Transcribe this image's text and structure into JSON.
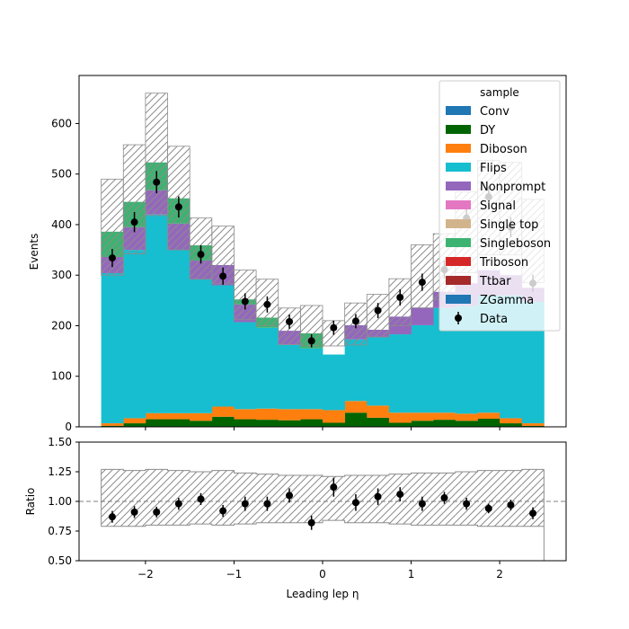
{
  "chart_data": [
    {
      "type": "stacked-histogram",
      "panel": "main",
      "xlabel": "",
      "ylabel": "Events",
      "xlim": [
        -2.75,
        2.75
      ],
      "ylim": [
        0,
        695
      ],
      "bin_edges": [
        -2.5,
        -2.25,
        -2.0,
        -1.75,
        -1.5,
        -1.25,
        -1.0,
        -0.75,
        -0.5,
        -0.25,
        0.0,
        0.25,
        0.5,
        0.75,
        1.0,
        1.25,
        1.5,
        1.75,
        2.0,
        2.25,
        2.5
      ],
      "x_ticks": [
        -2,
        -1,
        0,
        1,
        2
      ],
      "x_tick_labels": [
        "−2",
        "−1",
        "0",
        "1",
        "2"
      ],
      "y_ticks": [
        0,
        100,
        200,
        300,
        400,
        500,
        600
      ],
      "y_tick_labels": [
        "0",
        "100",
        "200",
        "300",
        "400",
        "500",
        "600"
      ],
      "legend_title": "sample",
      "legend_position": "top-right",
      "series": [
        {
          "name": "Conv",
          "color": "#1f77b4",
          "values": [
            0,
            0,
            0,
            0,
            0,
            0,
            0,
            0,
            0,
            0,
            0,
            0,
            0,
            0,
            0,
            0,
            0,
            0,
            0,
            0
          ]
        },
        {
          "name": "DY",
          "color": "#006400",
          "values": [
            2,
            7,
            15,
            15,
            12,
            20,
            15,
            14,
            13,
            15,
            8,
            28,
            18,
            8,
            12,
            14,
            12,
            16,
            7,
            2
          ]
        },
        {
          "name": "Diboson",
          "color": "#ff7f0e",
          "values": [
            5,
            10,
            12,
            12,
            15,
            20,
            20,
            22,
            22,
            20,
            25,
            23,
            24,
            20,
            16,
            14,
            14,
            12,
            10,
            5
          ]
        },
        {
          "name": "Flips",
          "color": "#17becf",
          "values": [
            297,
            333,
            393,
            323,
            265,
            240,
            172,
            160,
            127,
            120,
            110,
            122,
            135,
            155,
            173,
            207,
            213,
            232,
            243,
            240
          ]
        },
        {
          "name": "Nonprompt",
          "color": "#9467bd",
          "values": [
            32,
            45,
            48,
            52,
            37,
            40,
            35,
            0,
            28,
            0,
            0,
            28,
            15,
            35,
            35,
            32,
            45,
            50,
            40,
            28
          ]
        },
        {
          "name": "Signal",
          "color": "#e377c2",
          "values": [
            0,
            0,
            0,
            0,
            0,
            0,
            0,
            0,
            0,
            0,
            0,
            0,
            0,
            0,
            0,
            0,
            0,
            0,
            0,
            0
          ]
        },
        {
          "name": "Single top",
          "color": "#d2b48c",
          "values": [
            0,
            0,
            0,
            0,
            0,
            0,
            0,
            0,
            0,
            0,
            0,
            0,
            0,
            0,
            0,
            0,
            0,
            0,
            0,
            0
          ]
        },
        {
          "name": "Singleboson",
          "color": "#3cb371",
          "values": [
            50,
            50,
            55,
            50,
            30,
            0,
            10,
            20,
            0,
            30,
            0,
            0,
            0,
            0,
            0,
            0,
            0,
            0,
            0,
            0
          ]
        },
        {
          "name": "Triboson",
          "color": "#d62728",
          "values": [
            0,
            0,
            0,
            0,
            0,
            0,
            0,
            0,
            0,
            0,
            0,
            0,
            0,
            0,
            0,
            0,
            0,
            0,
            0,
            0
          ]
        },
        {
          "name": "Ttbar",
          "color": "#a52a2a",
          "values": [
            0,
            0,
            0,
            0,
            0,
            0,
            0,
            0,
            0,
            0,
            0,
            0,
            0,
            0,
            0,
            0,
            0,
            0,
            0,
            0
          ]
        },
        {
          "name": "ZGamma",
          "color": "#1f77b4",
          "values": [
            0,
            0,
            0,
            0,
            0,
            0,
            0,
            0,
            0,
            0,
            0,
            0,
            0,
            0,
            0,
            0,
            0,
            0,
            0,
            0
          ]
        }
      ],
      "uncertainty": {
        "up": [
          490,
          558,
          660,
          555,
          413,
          397,
          310,
          292,
          235,
          240,
          210,
          245,
          262,
          293,
          360,
          382,
          465,
          527,
          523,
          450
        ],
        "down": [
          300,
          342,
          418,
          350,
          292,
          283,
          212,
          200,
          163,
          160,
          160,
          162,
          178,
          200,
          235,
          252,
          305,
          340,
          340,
          285
        ]
      },
      "data": {
        "name": "Data",
        "x": [
          -2.375,
          -2.125,
          -1.875,
          -1.625,
          -1.375,
          -1.125,
          -0.875,
          -0.625,
          -0.375,
          -0.125,
          0.125,
          0.375,
          0.625,
          0.875,
          1.125,
          1.375,
          1.625,
          1.875,
          2.125,
          2.375
        ],
        "y": [
          334,
          405,
          484,
          435,
          341,
          298,
          248,
          242,
          208,
          170,
          196,
          209,
          230,
          256,
          286,
          311,
          413,
          455,
          395,
          284
        ],
        "err": [
          18,
          20,
          22,
          21,
          18,
          17,
          16,
          16,
          14,
          13,
          14,
          14,
          15,
          16,
          17,
          18,
          20,
          21,
          20,
          17
        ]
      }
    },
    {
      "type": "ratio",
      "panel": "ratio",
      "xlabel": "Leading lep η",
      "ylabel": "Ratio",
      "ylim": [
        0.5,
        1.5
      ],
      "y_ticks": [
        0.5,
        0.75,
        1.0,
        1.25,
        1.5
      ],
      "y_tick_labels": [
        "0.50",
        "0.75",
        "1.00",
        "1.25",
        "1.50"
      ],
      "reference_line": 1.0,
      "band": {
        "up": [
          1.27,
          1.26,
          1.27,
          1.26,
          1.25,
          1.26,
          1.24,
          1.23,
          1.22,
          1.22,
          1.21,
          1.22,
          1.22,
          1.23,
          1.24,
          1.24,
          1.25,
          1.26,
          1.26,
          1.27
        ],
        "down": [
          0.79,
          0.79,
          0.8,
          0.8,
          0.81,
          0.8,
          0.81,
          0.82,
          0.82,
          0.82,
          0.84,
          0.82,
          0.82,
          0.81,
          0.8,
          0.8,
          0.8,
          0.79,
          0.79,
          0.79
        ]
      },
      "points": {
        "y": [
          0.87,
          0.91,
          0.91,
          0.98,
          1.02,
          0.92,
          0.98,
          0.98,
          1.05,
          0.82,
          1.12,
          0.99,
          1.04,
          1.06,
          0.98,
          1.03,
          0.98,
          0.94,
          0.97,
          0.9
        ],
        "err": [
          0.05,
          0.05,
          0.045,
          0.05,
          0.05,
          0.05,
          0.06,
          0.06,
          0.06,
          0.06,
          0.08,
          0.07,
          0.07,
          0.06,
          0.06,
          0.05,
          0.05,
          0.04,
          0.045,
          0.05
        ]
      }
    }
  ]
}
